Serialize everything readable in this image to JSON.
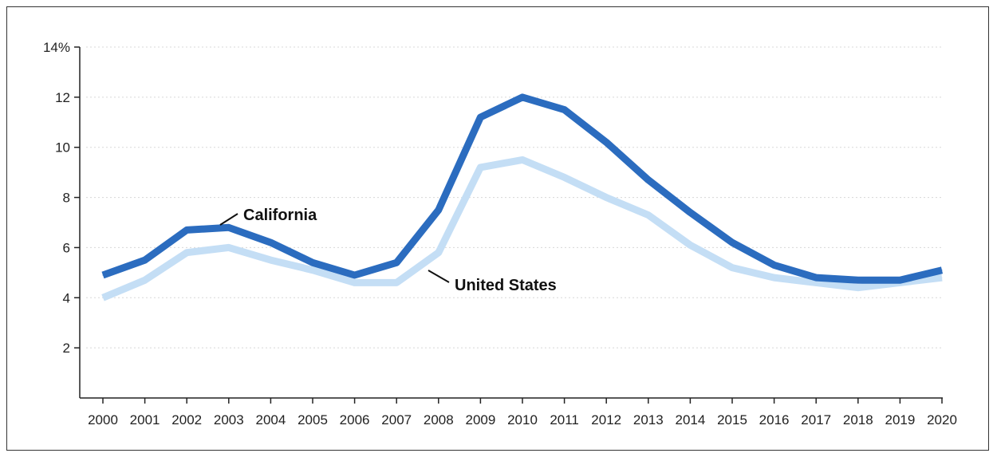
{
  "chart_data": {
    "type": "line",
    "x": [
      2000,
      2001,
      2002,
      2003,
      2004,
      2005,
      2006,
      2007,
      2008,
      2009,
      2010,
      2011,
      2012,
      2013,
      2014,
      2015,
      2016,
      2017,
      2018,
      2019,
      2020
    ],
    "series": [
      {
        "name": "California",
        "color": "#2b6cbf",
        "values": [
          4.9,
          5.5,
          6.7,
          6.8,
          6.2,
          5.4,
          4.9,
          5.4,
          7.5,
          11.2,
          12.0,
          11.5,
          10.2,
          8.7,
          7.4,
          6.2,
          5.3,
          4.8,
          4.7,
          4.7,
          5.1
        ]
      },
      {
        "name": "United States",
        "color": "#c4def5",
        "values": [
          4.0,
          4.7,
          5.8,
          6.0,
          5.5,
          5.1,
          4.6,
          4.6,
          5.8,
          9.2,
          9.5,
          8.8,
          8.0,
          7.3,
          6.1,
          5.2,
          4.8,
          4.6,
          4.4,
          4.6,
          4.8
        ]
      }
    ],
    "ylim": [
      0,
      14
    ],
    "yticks": [
      2,
      4,
      6,
      8,
      10,
      12,
      14
    ],
    "ytick_labels": [
      "2",
      "4",
      "6",
      "8",
      "10",
      "12",
      "14%"
    ],
    "grid": true,
    "legend": "inline labels on lines",
    "xlabel": "",
    "ylabel": "",
    "title": ""
  },
  "labels": {
    "california": "California",
    "united_states": "United States"
  }
}
